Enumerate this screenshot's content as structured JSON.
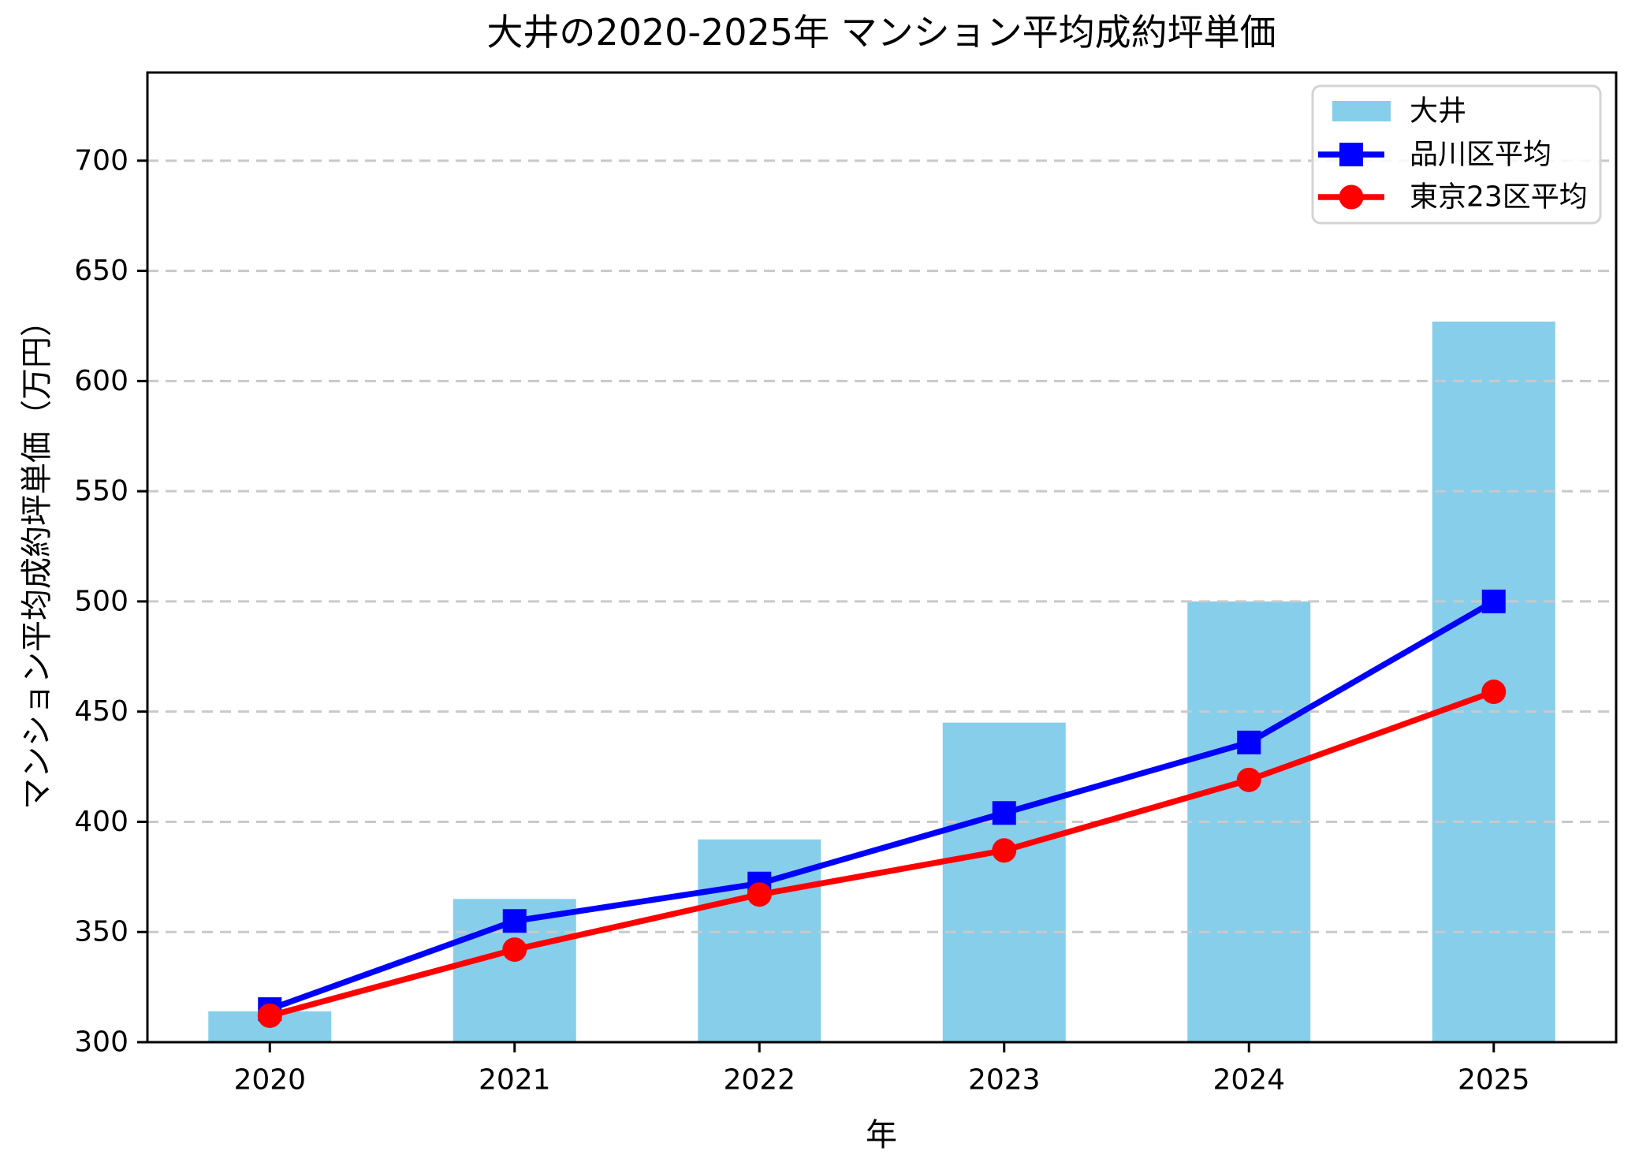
{
  "title": "大井の2020-2025年 マンション平均成約坪単価",
  "chart_data": {
    "type": "bar+line",
    "title": "大井の2020-2025年 マンション平均成約坪単価",
    "xlabel": "年",
    "ylabel": "マンション平均成約坪単価（万円）",
    "categories": [
      "2020",
      "2021",
      "2022",
      "2023",
      "2024",
      "2025"
    ],
    "series": [
      {
        "name": "大井",
        "type": "bar",
        "color": "#87CEEB",
        "values": [
          314,
          365,
          392,
          445,
          500,
          627
        ]
      },
      {
        "name": "品川区平均",
        "type": "line",
        "marker": "square",
        "color": "#0000FF",
        "values": [
          315,
          355,
          372,
          404,
          436,
          500
        ]
      },
      {
        "name": "東京23区平均",
        "type": "line",
        "marker": "circle",
        "color": "#FF0000",
        "values": [
          312,
          342,
          367,
          387,
          419,
          459
        ]
      }
    ],
    "ylim": [
      300,
      740
    ],
    "yticks": [
      300,
      350,
      400,
      450,
      500,
      550,
      600,
      650,
      700
    ],
    "grid": true,
    "grid_style": "dashed",
    "legend_position": "upper right",
    "colors": {
      "background": "#ffffff",
      "axis": "#000000",
      "grid": "#c9c9c9",
      "legend_border": "#d4d4d4",
      "text": "#000000"
    }
  }
}
